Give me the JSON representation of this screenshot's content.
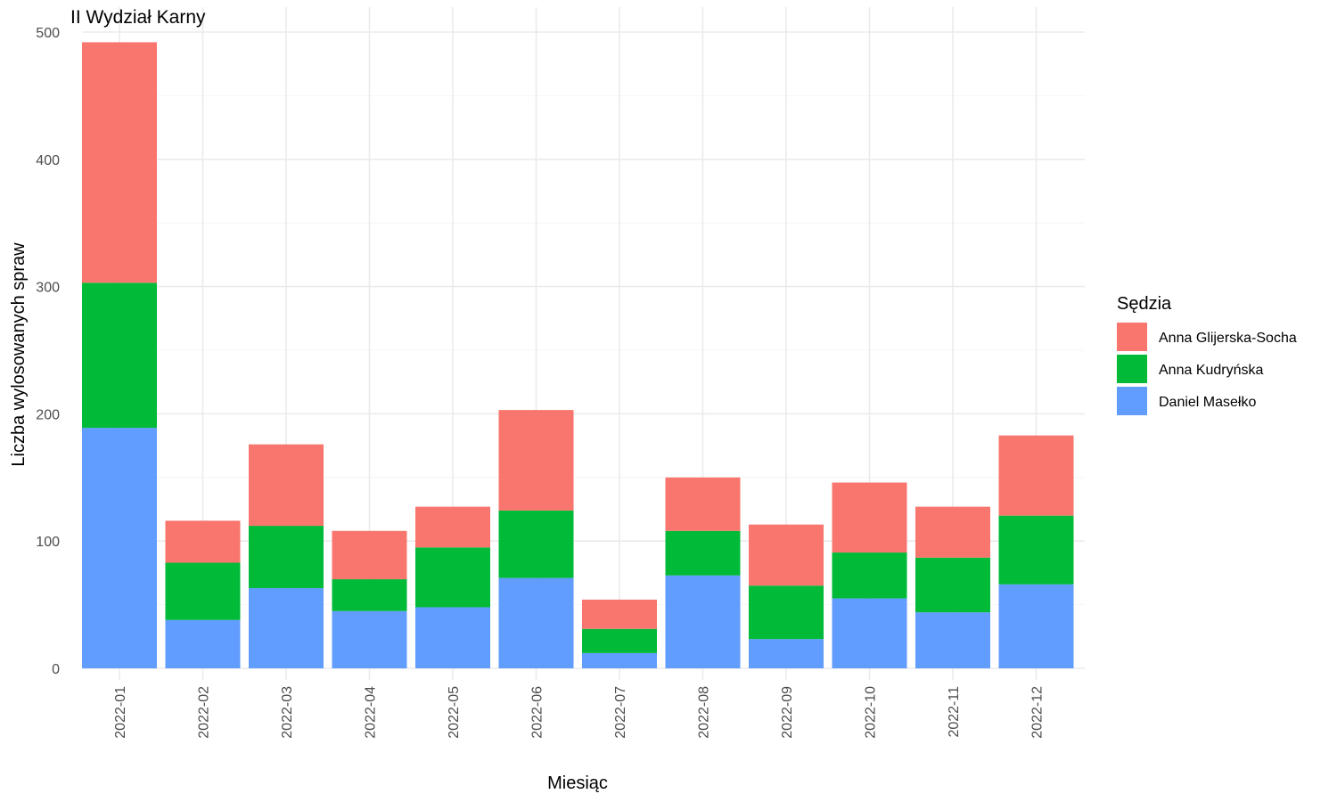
{
  "chart_data": {
    "type": "bar",
    "stacked": true,
    "title": "II Wydział Karny",
    "xlabel": "Miesiąc",
    "ylabel": "Liczba wylosowanych spraw",
    "ylim": [
      0,
      500
    ],
    "yticks": [
      0,
      100,
      200,
      300,
      400,
      500
    ],
    "grid": true,
    "legend_position": "right",
    "legend_title": "Sędzia",
    "categories": [
      "2022-01",
      "2022-02",
      "2022-03",
      "2022-04",
      "2022-05",
      "2022-06",
      "2022-07",
      "2022-08",
      "2022-09",
      "2022-10",
      "2022-11",
      "2022-12"
    ],
    "series": [
      {
        "name": "Daniel Masełko",
        "color": "#619CFF",
        "values": [
          189,
          38,
          63,
          45,
          48,
          71,
          12,
          73,
          23,
          55,
          44,
          66
        ]
      },
      {
        "name": "Anna Kudryńska",
        "color": "#00BA38",
        "values": [
          114,
          45,
          49,
          25,
          47,
          53,
          19,
          35,
          42,
          36,
          43,
          54
        ]
      },
      {
        "name": "Anna Glijerska-Socha",
        "color": "#F8766D",
        "values": [
          189,
          33,
          64,
          38,
          32,
          79,
          23,
          42,
          48,
          55,
          40,
          63
        ]
      }
    ],
    "legend_order": [
      "Anna Glijerska-Socha",
      "Anna Kudryńska",
      "Daniel Masełko"
    ]
  }
}
